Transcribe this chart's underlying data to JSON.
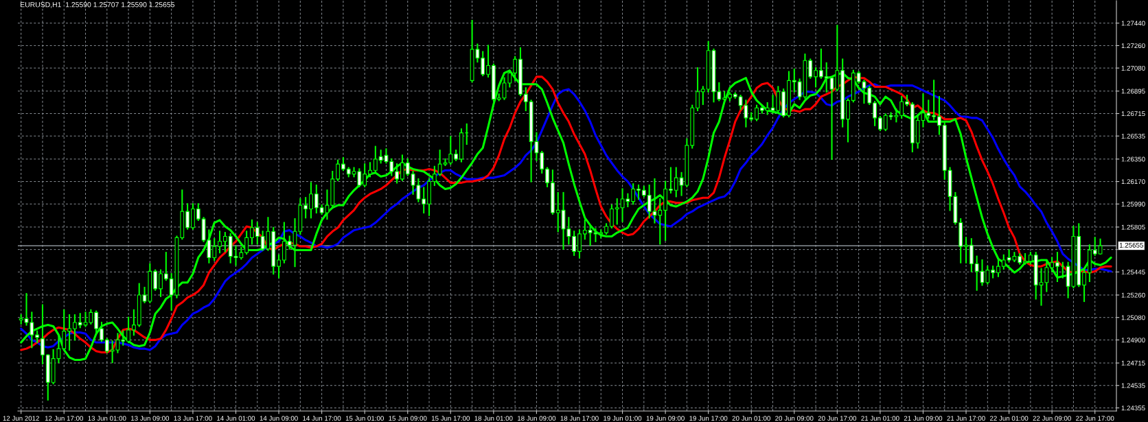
{
  "chart_data": {
    "type": "candlestick",
    "title": "EURUSD,H1  1.25590 1.25707 1.25590 1.25655",
    "categories": [
      "12 Jun 2012",
      null,
      null,
      null,
      null,
      null,
      null,
      null,
      "12 Jun 17:00",
      null,
      null,
      null,
      null,
      null,
      null,
      null,
      "13 Jun 01:00",
      null,
      null,
      null,
      null,
      null,
      null,
      null,
      "13 Jun 09:00",
      null,
      null,
      null,
      null,
      null,
      null,
      null,
      "13 Jun 17:00",
      null,
      null,
      null,
      null,
      null,
      null,
      null,
      "14 Jun 01:00",
      null,
      null,
      null,
      null,
      null,
      null,
      null,
      "14 Jun 09:00",
      null,
      null,
      null,
      null,
      null,
      null,
      null,
      "14 Jun 17:00",
      null,
      null,
      null,
      null,
      null,
      null,
      null,
      "15 Jun 01:00",
      null,
      null,
      null,
      null,
      null,
      null,
      null,
      "15 Jun 09:00",
      null,
      null,
      null,
      null,
      null,
      null,
      null,
      "15 Jun 17:00",
      null,
      null,
      null,
      null,
      null,
      null,
      null,
      "18 Jun 01:00",
      null,
      null,
      null,
      null,
      null,
      null,
      null,
      "18 Jun 09:00",
      null,
      null,
      null,
      null,
      null,
      null,
      null,
      "18 Jun 17:00",
      null,
      null,
      null,
      null,
      null,
      null,
      null,
      "19 Jun 01:00",
      null,
      null,
      null,
      null,
      null,
      null,
      null,
      "19 Jun 09:00",
      null,
      null,
      null,
      null,
      null,
      null,
      null,
      "19 Jun 17:00",
      null,
      null,
      null,
      null,
      null,
      null,
      null,
      "20 Jun 01:00",
      null,
      null,
      null,
      null,
      null,
      null,
      null,
      "20 Jun 09:00",
      null,
      null,
      null,
      null,
      null,
      null,
      null,
      "20 Jun 17:00",
      null,
      null,
      null,
      null,
      null,
      null,
      null,
      "21 Jun 01:00",
      null,
      null,
      null,
      null,
      null,
      null,
      null,
      "21 Jun 09:00",
      null,
      null,
      null,
      null,
      null,
      null,
      null,
      "21 Jun 17:00",
      null,
      null,
      null,
      null,
      null,
      null,
      null,
      "22 Jun 01:00",
      null,
      null,
      null,
      null,
      null,
      null,
      null,
      "22 Jun 09:00",
      null,
      null,
      null,
      null,
      null,
      null,
      null,
      "22 Jun 17:00",
      null,
      null,
      null
    ],
    "ohlc": [
      [
        1.2506,
        1.251,
        1.2503,
        1.2507
      ],
      [
        1.2507,
        1.2527,
        1.2502,
        1.2504
      ],
      [
        1.2504,
        1.2512,
        1.2484,
        1.2494
      ],
      [
        1.2494,
        1.2497,
        1.2488,
        1.2492
      ],
      [
        1.2491,
        1.2518,
        1.2471,
        1.2478
      ],
      [
        1.2478,
        1.2478,
        1.2442,
        1.2456
      ],
      [
        1.2456,
        1.2482,
        1.2455,
        1.2475
      ],
      [
        1.2475,
        1.2493,
        1.2472,
        1.2483
      ],
      [
        1.2483,
        1.2514,
        1.2482,
        1.2497
      ],
      [
        1.2497,
        1.251,
        1.2482,
        1.2499
      ],
      [
        1.2499,
        1.251,
        1.249,
        1.2504
      ],
      [
        1.2504,
        1.2511,
        1.25,
        1.2502
      ],
      [
        1.2502,
        1.2512,
        1.2501,
        1.2504
      ],
      [
        1.2504,
        1.2514,
        1.2503,
        1.2512
      ],
      [
        1.2512,
        1.2513,
        1.2495,
        1.2499
      ],
      [
        1.2499,
        1.2504,
        1.2489,
        1.249
      ],
      [
        1.249,
        1.2491,
        1.248,
        1.2481
      ],
      [
        1.2481,
        1.2489,
        1.2472,
        1.2482
      ],
      [
        1.2482,
        1.2495,
        1.248,
        1.249
      ],
      [
        1.249,
        1.2497,
        1.2486,
        1.2489
      ],
      [
        1.2489,
        1.2508,
        1.2488,
        1.2498
      ],
      [
        1.2498,
        1.2514,
        1.2494,
        1.2502
      ],
      [
        1.2502,
        1.2535,
        1.2501,
        1.2526
      ],
      [
        1.2526,
        1.2532,
        1.252,
        1.2521
      ],
      [
        1.2521,
        1.2551,
        1.252,
        1.2545
      ],
      [
        1.2545,
        1.2546,
        1.253,
        1.2531
      ],
      [
        1.2531,
        1.2546,
        1.2525,
        1.2543
      ],
      [
        1.2543,
        1.256,
        1.2538,
        1.2539
      ],
      [
        1.2539,
        1.2543,
        1.2514,
        1.2526
      ],
      [
        1.2526,
        1.2573,
        1.2524,
        1.2572
      ],
      [
        1.2572,
        1.261,
        1.2571,
        1.2593
      ],
      [
        1.2593,
        1.2599,
        1.2579,
        1.258
      ],
      [
        1.258,
        1.2599,
        1.2579,
        1.2595
      ],
      [
        1.2595,
        1.2599,
        1.2586,
        1.2587
      ],
      [
        1.2587,
        1.2588,
        1.2569,
        1.257
      ],
      [
        1.257,
        1.2578,
        1.2552,
        1.2556
      ],
      [
        1.2556,
        1.2571,
        1.2554,
        1.2565
      ],
      [
        1.2565,
        1.2577,
        1.256,
        1.2569
      ],
      [
        1.2569,
        1.2576,
        1.2561,
        1.2573
      ],
      [
        1.2573,
        1.2575,
        1.2552,
        1.2557
      ],
      [
        1.2557,
        1.2565,
        1.255,
        1.2556
      ],
      [
        1.2556,
        1.2564,
        1.2555,
        1.256
      ],
      [
        1.256,
        1.2577,
        1.2559,
        1.2572
      ],
      [
        1.2572,
        1.2586,
        1.2567,
        1.258
      ],
      [
        1.258,
        1.2584,
        1.2567,
        1.2573
      ],
      [
        1.2573,
        1.2577,
        1.2562,
        1.2563
      ],
      [
        1.2563,
        1.2588,
        1.2562,
        1.2577
      ],
      [
        1.2577,
        1.258,
        1.2543,
        1.2549
      ],
      [
        1.2549,
        1.2558,
        1.254,
        1.2554
      ],
      [
        1.2554,
        1.2584,
        1.2552,
        1.2569
      ],
      [
        1.2569,
        1.2573,
        1.2563,
        1.2566
      ],
      [
        1.2566,
        1.2587,
        1.2549,
        1.2577
      ],
      [
        1.2577,
        1.2603,
        1.2575,
        1.2598
      ],
      [
        1.2598,
        1.2604,
        1.2588,
        1.2595
      ],
      [
        1.2595,
        1.2616,
        1.2588,
        1.2607
      ],
      [
        1.2607,
        1.2614,
        1.2592,
        1.2596
      ],
      [
        1.2596,
        1.2598,
        1.2591,
        1.2592
      ],
      [
        1.2592,
        1.261,
        1.2587,
        1.2598
      ],
      [
        1.2598,
        1.2625,
        1.2597,
        1.2619
      ],
      [
        1.2619,
        1.2634,
        1.2618,
        1.2631
      ],
      [
        1.2631,
        1.2636,
        1.2626,
        1.2627
      ],
      [
        1.2627,
        1.2628,
        1.2621,
        1.2623
      ],
      [
        1.2623,
        1.2628,
        1.2621,
        1.2625
      ],
      [
        1.2625,
        1.2627,
        1.2613,
        1.2614
      ],
      [
        1.2614,
        1.2631,
        1.2613,
        1.2623
      ],
      [
        1.2623,
        1.2632,
        1.2621,
        1.2626
      ],
      [
        1.2626,
        1.2645,
        1.2625,
        1.2635
      ],
      [
        1.2637,
        1.2642,
        1.2632,
        1.2634
      ],
      [
        1.2638,
        1.2643,
        1.2632,
        1.2633
      ],
      [
        1.2633,
        1.2635,
        1.2622,
        1.2625
      ],
      [
        1.2625,
        1.2631,
        1.2616,
        1.2619
      ],
      [
        1.2619,
        1.2638,
        1.2618,
        1.2632
      ],
      [
        1.2632,
        1.2635,
        1.2622,
        1.2623
      ],
      [
        1.2623,
        1.2625,
        1.2607,
        1.2614
      ],
      [
        1.2614,
        1.2619,
        1.2601,
        1.2603
      ],
      [
        1.2603,
        1.2612,
        1.2592,
        1.2599
      ],
      [
        1.2599,
        1.2619,
        1.259,
        1.2617
      ],
      [
        1.2617,
        1.2629,
        1.2614,
        1.2623
      ],
      [
        1.2623,
        1.2642,
        1.2622,
        1.2631
      ],
      [
        1.2631,
        1.2635,
        1.263,
        1.2632
      ],
      [
        1.2632,
        1.2653,
        1.2631,
        1.2639
      ],
      [
        1.2639,
        1.2642,
        1.2634,
        1.2635
      ],
      [
        1.2635,
        1.2659,
        1.2633,
        1.2656
      ],
      [
        1.2656,
        1.2663,
        1.2647,
        1.2656
      ],
      [
        1.2698,
        1.2746,
        1.2697,
        1.2723
      ],
      [
        1.2723,
        1.2727,
        1.2713,
        1.2716
      ],
      [
        1.2716,
        1.2721,
        1.2702,
        1.2703
      ],
      [
        1.2703,
        1.2726,
        1.2701,
        1.271
      ],
      [
        1.271,
        1.2711,
        1.2682,
        1.2683
      ],
      [
        1.2683,
        1.2687,
        1.2682,
        1.2684
      ],
      [
        1.2684,
        1.27,
        1.2683,
        1.2696
      ],
      [
        1.2696,
        1.2706,
        1.2693,
        1.2704
      ],
      [
        1.2704,
        1.2717,
        1.2698,
        1.2715
      ],
      [
        1.2715,
        1.2724,
        1.2686,
        1.2687
      ],
      [
        1.2687,
        1.2692,
        1.2674,
        1.2681
      ],
      [
        1.2681,
        1.2682,
        1.2617,
        1.2649
      ],
      [
        1.2649,
        1.2656,
        1.2634,
        1.264
      ],
      [
        1.264,
        1.2641,
        1.2624,
        1.2627
      ],
      [
        1.2627,
        1.2628,
        1.2613,
        1.2616
      ],
      [
        1.2616,
        1.2626,
        1.2591,
        1.2592
      ],
      [
        1.2592,
        1.2608,
        1.2577,
        1.2594
      ],
      [
        1.2594,
        1.2608,
        1.2563,
        1.2579
      ],
      [
        1.2579,
        1.2588,
        1.2567,
        1.2573
      ],
      [
        1.2573,
        1.2577,
        1.2558,
        1.2561
      ],
      [
        1.2561,
        1.2578,
        1.2556,
        1.2575
      ],
      [
        1.2575,
        1.2586,
        1.2571,
        1.2578
      ],
      [
        1.2578,
        1.2581,
        1.2566,
        1.2576
      ],
      [
        1.2576,
        1.2579,
        1.2569,
        1.2575
      ],
      [
        1.2575,
        1.2578,
        1.2572,
        1.2576
      ],
      [
        1.2576,
        1.2583,
        1.2575,
        1.2581
      ],
      [
        1.2581,
        1.2598,
        1.258,
        1.2595
      ],
      [
        1.2595,
        1.2603,
        1.2583,
        1.2596
      ],
      [
        1.2596,
        1.2611,
        1.2585,
        1.2603
      ],
      [
        1.2603,
        1.2607,
        1.2597,
        1.2601
      ],
      [
        1.2601,
        1.2615,
        1.2599,
        1.2611
      ],
      [
        1.2611,
        1.2614,
        1.2603,
        1.261
      ],
      [
        1.261,
        1.2613,
        1.2605,
        1.2606
      ],
      [
        1.2606,
        1.2614,
        1.2588,
        1.2593
      ],
      [
        1.2593,
        1.2619,
        1.2584,
        1.259
      ],
      [
        1.259,
        1.2603,
        1.2567,
        1.2594
      ],
      [
        1.2594,
        1.2617,
        1.257,
        1.2611
      ],
      [
        1.2611,
        1.2628,
        1.2608,
        1.261
      ],
      [
        1.261,
        1.2628,
        1.2605,
        1.262
      ],
      [
        1.262,
        1.2624,
        1.2606,
        1.2614
      ],
      [
        1.2614,
        1.2651,
        1.2613,
        1.2646
      ],
      [
        1.2646,
        1.2678,
        1.2644,
        1.2676
      ],
      [
        1.2676,
        1.2708,
        1.2674,
        1.2689
      ],
      [
        1.2689,
        1.2693,
        1.2679,
        1.2691
      ],
      [
        1.2691,
        1.2729,
        1.2689,
        1.2722
      ],
      [
        1.2722,
        1.2723,
        1.2681,
        1.2689
      ],
      [
        1.2689,
        1.2696,
        1.2682,
        1.2683
      ],
      [
        1.2683,
        1.2689,
        1.2682,
        1.2684
      ],
      [
        1.2684,
        1.2688,
        1.2682,
        1.2687
      ],
      [
        1.2687,
        1.2688,
        1.2684,
        1.2685
      ],
      [
        1.2685,
        1.2686,
        1.2675,
        1.2678
      ],
      [
        1.2678,
        1.2682,
        1.2661,
        1.2668
      ],
      [
        1.2668,
        1.2672,
        1.2666,
        1.2667
      ],
      [
        1.2667,
        1.2678,
        1.2666,
        1.2676
      ],
      [
        1.2676,
        1.2678,
        1.2672,
        1.2674
      ],
      [
        1.2674,
        1.268,
        1.2671,
        1.2676
      ],
      [
        1.2676,
        1.2686,
        1.2672,
        1.2674
      ],
      [
        1.2674,
        1.2693,
        1.2673,
        1.2689
      ],
      [
        1.2689,
        1.2691,
        1.2669,
        1.267
      ],
      [
        1.267,
        1.2705,
        1.2669,
        1.2698
      ],
      [
        1.2698,
        1.2707,
        1.2689,
        1.2697
      ],
      [
        1.2697,
        1.2699,
        1.2683,
        1.2685
      ],
      [
        1.2685,
        1.2719,
        1.2684,
        1.2714
      ],
      [
        1.2714,
        1.2715,
        1.27,
        1.2701
      ],
      [
        1.2701,
        1.2708,
        1.2693,
        1.2706
      ],
      [
        1.2706,
        1.2723,
        1.27,
        1.2701
      ],
      [
        1.2701,
        1.2712,
        1.2689,
        1.27
      ],
      [
        1.27,
        1.2701,
        1.2635,
        1.2691
      ],
      [
        1.2691,
        1.2742,
        1.269,
        1.2706
      ],
      [
        1.2706,
        1.2715,
        1.2661,
        1.2667
      ],
      [
        1.2667,
        1.2683,
        1.2649,
        1.2682
      ],
      [
        1.2682,
        1.2706,
        1.2681,
        1.2704
      ],
      [
        1.2704,
        1.2705,
        1.2696,
        1.2697
      ],
      [
        1.2697,
        1.2698,
        1.268,
        1.2692
      ],
      [
        1.2692,
        1.2693,
        1.2679,
        1.268
      ],
      [
        1.268,
        1.2681,
        1.2662,
        1.2668
      ],
      [
        1.2668,
        1.2669,
        1.2658,
        1.2659
      ],
      [
        1.2659,
        1.2671,
        1.2658,
        1.267
      ],
      [
        1.267,
        1.2672,
        1.2667,
        1.2669
      ],
      [
        1.2669,
        1.2675,
        1.2665,
        1.267
      ],
      [
        1.267,
        1.2685,
        1.2668,
        1.2681
      ],
      [
        1.2681,
        1.2686,
        1.2678,
        1.2679
      ],
      [
        1.2679,
        1.268,
        1.2641,
        1.2648
      ],
      [
        1.2648,
        1.267,
        1.2644,
        1.2666
      ],
      [
        1.2666,
        1.2687,
        1.2661,
        1.2672
      ],
      [
        1.2672,
        1.2682,
        1.2668,
        1.267
      ],
      [
        1.267,
        1.2698,
        1.2667,
        1.2669
      ],
      [
        1.2669,
        1.2685,
        1.2655,
        1.2662
      ],
      [
        1.2662,
        1.2664,
        1.2619,
        1.2626
      ],
      [
        1.2626,
        1.2628,
        1.2594,
        1.2605
      ],
      [
        1.2605,
        1.2608,
        1.2583,
        1.2584
      ],
      [
        1.2584,
        1.2587,
        1.2552,
        1.2565
      ],
      [
        1.2565,
        1.2572,
        1.2552,
        1.2566
      ],
      [
        1.2566,
        1.2571,
        1.2545,
        1.2551
      ],
      [
        1.2551,
        1.2557,
        1.253,
        1.2545
      ],
      [
        1.2545,
        1.2554,
        1.2534,
        1.2536
      ],
      [
        1.2536,
        1.2549,
        1.2535,
        1.2546
      ],
      [
        1.2546,
        1.2549,
        1.254,
        1.2544
      ],
      [
        1.2544,
        1.2554,
        1.2541,
        1.2549
      ],
      [
        1.2549,
        1.2558,
        1.2547,
        1.2554
      ],
      [
        1.2556,
        1.2562,
        1.2553,
        1.2554
      ],
      [
        1.2554,
        1.256,
        1.2553,
        1.2557
      ],
      [
        1.2557,
        1.2559,
        1.2551,
        1.2552
      ],
      [
        1.2552,
        1.2559,
        1.2551,
        1.2553
      ],
      [
        1.2553,
        1.256,
        1.2551,
        1.2558
      ],
      [
        1.2558,
        1.256,
        1.2523,
        1.2534
      ],
      [
        1.2534,
        1.2547,
        1.2518,
        1.2536
      ],
      [
        1.2536,
        1.2554,
        1.2529,
        1.2548
      ],
      [
        1.2548,
        1.2556,
        1.2545,
        1.2552
      ],
      [
        1.2552,
        1.256,
        1.2537,
        1.2549
      ],
      [
        1.2549,
        1.2552,
        1.254,
        1.2549
      ],
      [
        1.2549,
        1.2552,
        1.2524,
        1.2533
      ],
      [
        1.2533,
        1.2581,
        1.2532,
        1.2573
      ],
      [
        1.2573,
        1.2583,
        1.2533,
        1.2534
      ],
      [
        1.2534,
        1.2547,
        1.2521,
        1.2544
      ],
      [
        1.2544,
        1.2566,
        1.2537,
        1.2562
      ],
      [
        1.2562,
        1.2572,
        1.2558,
        1.2559
      ],
      [
        1.2559,
        1.25707,
        1.2559,
        1.25655
      ],
      null,
      null
    ],
    "color": "#00ff00",
    "colors": [
      "#000000",
      "#ffffff",
      "#ffffff",
      "#ffffff",
      "#ffffff",
      "#ffffff",
      "#000000",
      "#000000",
      "#000000",
      "#000000",
      "#000000",
      "#ffffff",
      "#000000",
      "#000000",
      "#ffffff",
      "#ffffff",
      "#ffffff",
      "#000000",
      "#000000",
      "#ffffff",
      "#000000",
      "#000000",
      "#000000",
      "#ffffff",
      "#000000",
      "#ffffff",
      "#000000",
      "#ffffff",
      "#ffffff",
      "#000000",
      "#000000",
      "#ffffff",
      "#000000",
      "#ffffff",
      "#ffffff",
      "#ffffff",
      "#000000",
      "#000000",
      "#000000",
      "#ffffff",
      "#ffffff",
      "#000000",
      "#000000",
      "#000000",
      "#ffffff",
      "#ffffff",
      "#000000",
      "#ffffff",
      "#000000",
      "#000000",
      "#ffffff",
      "#000000",
      "#000000",
      "#ffffff",
      "#000000",
      "#ffffff",
      "#ffffff",
      "#000000",
      "#000000",
      "#000000",
      "#ffffff",
      "#ffffff",
      "#000000",
      "#ffffff",
      "#000000",
      "#000000",
      "#000000",
      "#ffffff",
      "#ffffff",
      "#ffffff",
      "#ffffff",
      "#000000",
      "#ffffff",
      "#ffffff",
      "#ffffff",
      "#ffffff",
      "#000000",
      "#000000",
      "#000000",
      "#000000",
      "#000000",
      "#ffffff",
      "#000000",
      "#00ff00",
      "#000000",
      "#ffffff",
      "#ffffff",
      "#000000",
      "#ffffff",
      "#000000",
      "#000000",
      "#000000",
      "#000000",
      "#ffffff",
      "#ffffff",
      "#ffffff",
      "#ffffff",
      "#ffffff",
      "#ffffff",
      "#ffffff",
      "#000000",
      "#ffffff",
      "#ffffff",
      "#ffffff",
      "#000000",
      "#000000",
      "#ffffff",
      "#ffffff",
      "#000000",
      "#000000",
      "#000000",
      "#000000",
      "#000000",
      "#ffffff",
      "#000000",
      "#ffffff",
      "#ffffff",
      "#ffffff",
      "#ffffff",
      "#000000",
      "#000000",
      "#ffffff",
      "#000000",
      "#ffffff",
      "#000000",
      "#000000",
      "#000000",
      "#000000",
      "#000000",
      "#ffffff",
      "#ffffff",
      "#000000",
      "#000000",
      "#ffffff",
      "#ffffff",
      "#ffffff",
      "#ffffff",
      "#000000",
      "#ffffff",
      "#000000",
      "#ffffff",
      "#000000",
      "#ffffff",
      "#000000",
      "#ffffff",
      "#ffffff",
      "#000000",
      "#ffffff",
      "#000000",
      "#ffffff",
      "#ffffff",
      "#ffffff",
      "#000000",
      "#ffffff",
      "#000000",
      "#000000",
      "#ffffff",
      "#ffffff",
      "#ffffff",
      "#ffffff",
      "#ffffff",
      "#000000",
      "#ffffff",
      "#000000",
      "#000000",
      "#ffffff",
      "#ffffff",
      "#000000",
      "#000000",
      "#ffffff",
      "#ffffff",
      "#ffffff",
      "#ffffff",
      "#ffffff",
      "#ffffff",
      "#ffffff",
      "#000000",
      "#ffffff",
      "#ffffff",
      "#ffffff",
      "#000000",
      "#ffffff",
      "#000000",
      "#000000",
      "#ffffff",
      "#000000",
      "#ffffff",
      "#000000",
      "#000000",
      "#ffffff",
      "#000000",
      "#000000",
      "#000000",
      "#ffffff",
      "#00ff00",
      "#ffffff",
      "#000000",
      "#ffffff",
      "#000000",
      "#000000",
      "#ffffff",
      "#000000",
      null,
      null
    ],
    "series": [
      {
        "type": "line",
        "color": "#0000ff",
        "values": [
          1.2499,
          1.2495,
          1.249,
          1.2488,
          1.2485,
          1.2484,
          1.2485,
          1.2489,
          1.2492,
          1.2495,
          1.2496,
          1.2496,
          1.2495,
          1.249,
          1.2488,
          1.2488,
          1.2488,
          1.2488,
          1.2488,
          1.2487,
          1.2486,
          1.2484,
          1.2483,
          1.2483,
          1.2482,
          1.2485,
          1.2491,
          1.2494,
          1.2495,
          1.2496,
          1.2502,
          1.2506,
          1.2511,
          1.2513,
          1.2516,
          1.2518,
          1.2523,
          1.253,
          1.2537,
          1.2541,
          1.2544,
          1.2547,
          1.2551,
          1.2556,
          1.2559,
          1.2562,
          1.2565,
          1.2567,
          1.2569,
          1.2577,
          1.2578,
          1.2575,
          1.2573,
          1.257,
          1.2568,
          1.2565,
          1.2565,
          1.2564,
          1.2565,
          1.2567,
          1.2572,
          1.2575,
          1.2578,
          1.2579,
          1.258,
          1.2581,
          1.2584,
          1.2588,
          1.2592,
          1.2596,
          1.2599,
          1.2603,
          1.2606,
          1.2609,
          1.2612,
          1.2614,
          1.2618,
          1.2621,
          1.2624,
          1.2626,
          1.2626,
          1.2623,
          1.2621,
          1.2619,
          1.2619,
          1.2619,
          1.262,
          1.262,
          1.262,
          1.2621,
          1.2622,
          1.2625,
          1.2628,
          1.2632,
          1.2638,
          1.2642,
          1.2648,
          1.2658,
          1.2668,
          1.2678,
          1.2687,
          1.269,
          1.2691,
          1.2687,
          1.2681,
          1.2674,
          1.2665,
          1.2654,
          1.2646,
          1.2638,
          1.2632,
          1.2626,
          1.2621,
          1.2617,
          1.2611,
          1.2604,
          1.2597,
          1.2591,
          1.2587,
          1.2583,
          1.2582,
          1.2581,
          1.2584,
          1.2587,
          1.2591,
          1.2593,
          1.2596,
          1.2598,
          1.26,
          1.2602,
          1.2604,
          1.2605,
          1.2609,
          1.2617,
          1.2627,
          1.2632,
          1.2638,
          1.2642,
          1.2647,
          1.2654,
          1.266,
          1.2668,
          1.2675,
          1.268,
          1.2683,
          1.2686,
          1.2689,
          1.2689,
          1.2688,
          1.2684,
          1.2679,
          1.2678,
          1.2681,
          1.2682,
          1.2685,
          1.2687,
          1.2689,
          1.2692,
          1.2694,
          1.2695,
          1.2693,
          1.2693,
          1.2694,
          1.2694,
          1.2694,
          1.2694,
          1.2694,
          1.2692,
          1.269,
          1.2688,
          1.2686,
          1.2684,
          1.2682,
          1.2678,
          1.2673,
          1.2669,
          1.2669,
          1.2668,
          1.2668,
          1.2666,
          1.2659,
          1.2652,
          1.2643,
          1.2635,
          1.2628,
          1.2622,
          1.2613,
          1.2609,
          1.2604,
          1.2598,
          1.2593,
          1.2584,
          1.2577,
          1.2569,
          1.2559,
          1.2555,
          1.2552,
          1.2549,
          1.2546,
          1.2546,
          1.2547,
          1.2547,
          1.2546,
          1.2545
        ]
      },
      {
        "type": "line",
        "color": "#ff0000",
        "values": [
          1.2482,
          1.2483,
          1.2485,
          1.2488,
          1.2491,
          1.2495,
          1.2498,
          1.25,
          1.2499,
          1.2498,
          1.2495,
          1.2491,
          1.2488,
          1.2484,
          1.2481,
          1.248,
          1.248,
          1.2482,
          1.2491,
          1.2498,
          1.2499,
          1.2498,
          1.2495,
          1.2492,
          1.249,
          1.249,
          1.2491,
          1.2498,
          1.2507,
          1.2517,
          1.252,
          1.2524,
          1.2526,
          1.2529,
          1.2534,
          1.2544,
          1.255,
          1.2556,
          1.256,
          1.2565,
          1.2569,
          1.2575,
          1.2581,
          1.258,
          1.2576,
          1.2572,
          1.2564,
          1.2562,
          1.2565,
          1.2567,
          1.2568,
          1.2567,
          1.2565,
          1.2565,
          1.2564,
          1.2565,
          1.2567,
          1.2573,
          1.2577,
          1.258,
          1.2586,
          1.259,
          1.2594,
          1.26,
          1.2604,
          1.2607,
          1.2609,
          1.2611,
          1.2614,
          1.2618,
          1.2622,
          1.2626,
          1.2627,
          1.2626,
          1.2626,
          1.2626,
          1.2627,
          1.2626,
          1.2624,
          1.262,
          1.2616,
          1.2616,
          1.2616,
          1.2617,
          1.2617,
          1.2618,
          1.2619,
          1.2622,
          1.2628,
          1.2638,
          1.2651,
          1.266,
          1.2672,
          1.2681,
          1.2687,
          1.2694,
          1.2701,
          1.2701,
          1.2697,
          1.2691,
          1.268,
          1.2672,
          1.2665,
          1.2655,
          1.2647,
          1.2639,
          1.2626,
          1.2611,
          1.2597,
          1.2589,
          1.2583,
          1.2579,
          1.2576,
          1.2574,
          1.2575,
          1.2579,
          1.2585,
          1.2589,
          1.2593,
          1.2598,
          1.2601,
          1.2601,
          1.26,
          1.26,
          1.26,
          1.2602,
          1.2603,
          1.2604,
          1.2604,
          1.2608,
          1.262,
          1.2636,
          1.265,
          1.2665,
          1.2674,
          1.2679,
          1.2685,
          1.2692,
          1.2695,
          1.2696,
          1.2692,
          1.2683,
          1.2676,
          1.2674,
          1.2674,
          1.2673,
          1.2675,
          1.2675,
          1.2679,
          1.2685,
          1.2687,
          1.2689,
          1.2693,
          1.2695,
          1.2698,
          1.2701,
          1.27,
          1.27,
          1.2697,
          1.2693,
          1.2693,
          1.2693,
          1.2691,
          1.2689,
          1.2687,
          1.2683,
          1.2676,
          1.2678,
          1.2674,
          1.2672,
          1.2672,
          1.267,
          1.2667,
          1.2667,
          1.2667,
          1.2668,
          1.2666,
          1.2657,
          1.2645,
          1.2634,
          1.2625,
          1.2615,
          1.2603,
          1.2592,
          1.258,
          1.2572,
          1.2559,
          1.2553,
          1.255,
          1.2549,
          1.2549,
          1.2551,
          1.2552,
          1.2553,
          1.2549,
          1.2545,
          1.2544,
          1.2545,
          1.2545,
          1.2544,
          1.2545,
          1.2548,
          1.2549,
          1.2549
        ]
      },
      {
        "type": "line",
        "color": "#00ff00",
        "values": [
          1.2488,
          1.2493,
          1.2497,
          1.2499,
          1.2501,
          1.2502,
          1.2501,
          1.2494,
          1.2482,
          1.2476,
          1.2474,
          1.2474,
          1.2475,
          1.2484,
          1.2495,
          1.2501,
          1.2503,
          1.2504,
          1.2499,
          1.2493,
          1.2489,
          1.2486,
          1.2485,
          1.2486,
          1.2496,
          1.2511,
          1.2516,
          1.2523,
          1.2526,
          1.2532,
          1.2536,
          1.2536,
          1.2543,
          1.2556,
          1.2562,
          1.2571,
          1.2584,
          1.2586,
          1.2581,
          1.2578,
          1.2573,
          1.2567,
          1.2562,
          1.2562,
          1.2562,
          1.2563,
          1.2566,
          1.2568,
          1.2572,
          1.2571,
          1.2565,
          1.2562,
          1.2562,
          1.2562,
          1.2562,
          1.2575,
          1.2586,
          1.2592,
          1.2596,
          1.2598,
          1.2598,
          1.2605,
          1.261,
          1.2614,
          1.2618,
          1.2623,
          1.2624,
          1.2621,
          1.2622,
          1.2625,
          1.2629,
          1.2632,
          1.2629,
          1.2627,
          1.2626,
          1.2625,
          1.2622,
          1.2619,
          1.2614,
          1.2611,
          1.2612,
          1.2615,
          1.262,
          1.2626,
          1.2632,
          1.2639,
          1.2644,
          1.2661,
          1.2679,
          1.2694,
          1.2704,
          1.2706,
          1.27,
          1.2695,
          1.2695,
          1.2695,
          1.2695,
          1.2691,
          1.268,
          1.2668,
          1.2658,
          1.2648,
          1.2631,
          1.2615,
          1.2601,
          1.2588,
          1.2582,
          1.2577,
          1.2574,
          1.2573,
          1.2573,
          1.2576,
          1.2578,
          1.258,
          1.2588,
          1.2595,
          1.2598,
          1.2601,
          1.2603,
          1.2606,
          1.2602,
          1.2598,
          1.2597,
          1.2599,
          1.2601,
          1.2604,
          1.2609,
          1.2619,
          1.2636,
          1.2656,
          1.2665,
          1.2681,
          1.2692,
          1.2696,
          1.2698,
          1.27,
          1.2689,
          1.2682,
          1.2678,
          1.2674,
          1.2673,
          1.2672,
          1.267,
          1.2672,
          1.2679,
          1.2676,
          1.2682,
          1.2686,
          1.2687,
          1.2692,
          1.27,
          1.2701,
          1.2703,
          1.2704,
          1.27,
          1.2699,
          1.2692,
          1.2688,
          1.2687,
          1.2685,
          1.2679,
          1.2685,
          1.2682,
          1.2674,
          1.2671,
          1.2669,
          1.2667,
          1.267,
          1.2674,
          1.2665,
          1.2665,
          1.2665,
          1.2665,
          1.2665,
          1.2667,
          1.2655,
          1.2636,
          1.262,
          1.2604,
          1.2588,
          1.2575,
          1.2564,
          1.2555,
          1.2552,
          1.2548,
          1.2544,
          1.2547,
          1.2552,
          1.2553,
          1.2553,
          1.2554,
          1.2554,
          1.2547,
          1.254,
          1.2541,
          1.2542,
          1.2543,
          1.2545,
          1.2547,
          1.2554,
          1.2551,
          1.255,
          1.2552,
          1.2556
        ]
      }
    ],
    "ylim": [
      1.2433,
      1.2762
    ],
    "yticks": [
      {
        "value": 1.2744,
        "label": "1.27440"
      },
      {
        "value": 1.2726,
        "label": "1.27260"
      },
      {
        "value": 1.2708,
        "label": "1.27080"
      },
      {
        "value": 1.26895,
        "label": "1.26895"
      },
      {
        "value": 1.26715,
        "label": "1.26715"
      },
      {
        "value": 1.26535,
        "label": "1.26535"
      },
      {
        "value": 1.2635,
        "label": "1.26350"
      },
      {
        "value": 1.2617,
        "label": "1.26170"
      },
      {
        "value": 1.2599,
        "label": "1.25990"
      },
      {
        "value": 1.25805,
        "label": "1.25805"
      },
      {
        "value": 1.25625,
        "label": null
      },
      {
        "value": 1.25445,
        "label": "1.25445"
      },
      {
        "value": 1.2526,
        "label": "1.25260"
      },
      {
        "value": 1.2508,
        "label": "1.25080"
      },
      {
        "value": 1.249,
        "label": "1.24900"
      },
      {
        "value": 1.24715,
        "label": "1.24715"
      },
      {
        "value": 1.24535,
        "label": "1.24535"
      },
      {
        "value": 1.24355,
        "label": "1.24355"
      }
    ],
    "ref_lines": [
      {
        "axis": "y",
        "value": 1.25655,
        "label": "1.25655",
        "color": "#a8b0b8"
      }
    ],
    "grid": true
  }
}
